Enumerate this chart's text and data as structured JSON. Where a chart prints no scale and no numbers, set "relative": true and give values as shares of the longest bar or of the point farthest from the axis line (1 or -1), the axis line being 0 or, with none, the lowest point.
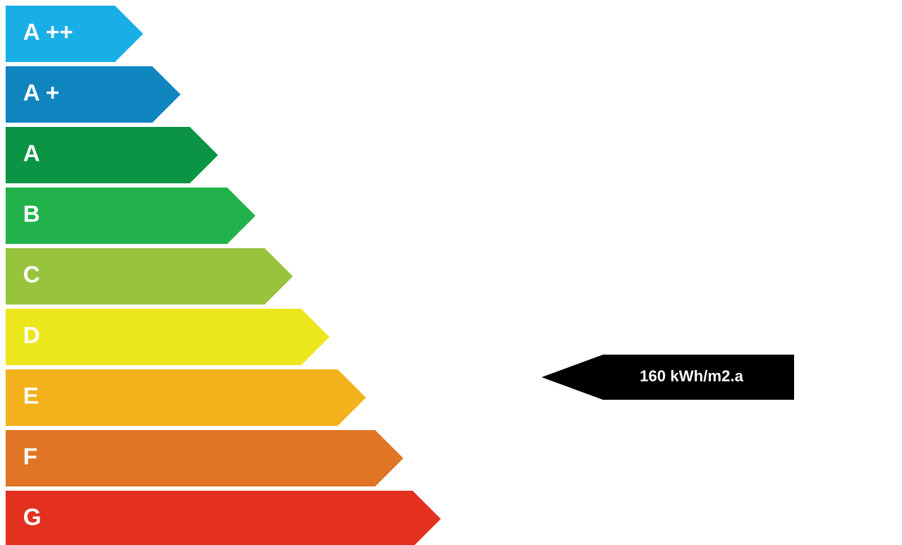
{
  "chart_data": {
    "type": "bar",
    "orientation": "horizontal",
    "relative": true,
    "categories": [
      "A ++",
      "A +",
      "A",
      "B",
      "C",
      "D",
      "E",
      "F",
      "G"
    ],
    "values": [
      0.316,
      0.402,
      0.488,
      0.574,
      0.66,
      0.744,
      0.828,
      0.914,
      1.0
    ],
    "colors": [
      "#1aaee6",
      "#0f85c0",
      "#0a9444",
      "#21b24b",
      "#98c43d",
      "#ece61d",
      "#f3b21c",
      "#e07625",
      "#e3301f"
    ],
    "annotations": [
      "160 kWh/m2.a"
    ]
  }
}
